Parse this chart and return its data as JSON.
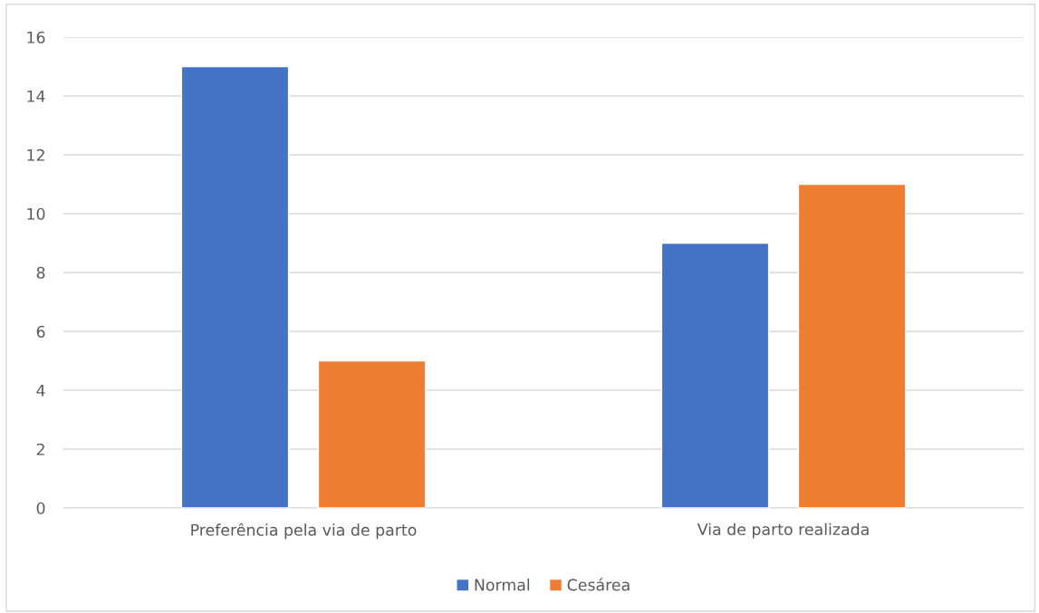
{
  "chart_data": {
    "type": "bar",
    "categories": [
      "Preferência pela via de parto",
      "Via de parto realizada"
    ],
    "series": [
      {
        "name": "Normal",
        "color": "#4472c4",
        "values": [
          15,
          9
        ]
      },
      {
        "name": "Cesárea",
        "color": "#ed7d31",
        "values": [
          5,
          11
        ]
      }
    ],
    "ylim": [
      0,
      16
    ],
    "yticks": [
      0,
      2,
      4,
      6,
      8,
      10,
      12,
      14,
      16
    ],
    "grid": "y",
    "legend": "bottom"
  }
}
